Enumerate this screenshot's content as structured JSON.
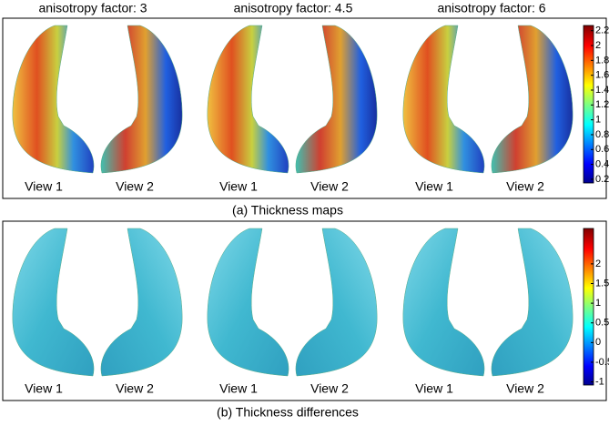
{
  "columns": [
    "anisotropy factor: 3",
    "anisotropy factor: 4.5",
    "anisotropy factor: 6"
  ],
  "panels": [
    {
      "caption": "(a) Thickness maps",
      "views": [
        [
          "View 1",
          "View 2"
        ],
        [
          "View 1",
          "View 2"
        ],
        [
          "View 1",
          "View 2"
        ]
      ],
      "colorbar": {
        "lim": [
          0.15,
          2.27
        ],
        "ticks": [
          0.2,
          0.4,
          0.6,
          0.8,
          1,
          1.2,
          1.4,
          1.6,
          1.8,
          2,
          2.2
        ]
      }
    },
    {
      "caption": "(b) Thickness differences",
      "views": [
        [
          "View 1",
          "View 2"
        ],
        [
          "View 1",
          "View 2"
        ],
        [
          "View 1",
          "View 2"
        ]
      ],
      "colorbar": {
        "lim": [
          -1.08,
          2.9
        ],
        "ticks": [
          -1,
          -0.5,
          0,
          0.5,
          1,
          1.5,
          2
        ]
      }
    }
  ]
}
